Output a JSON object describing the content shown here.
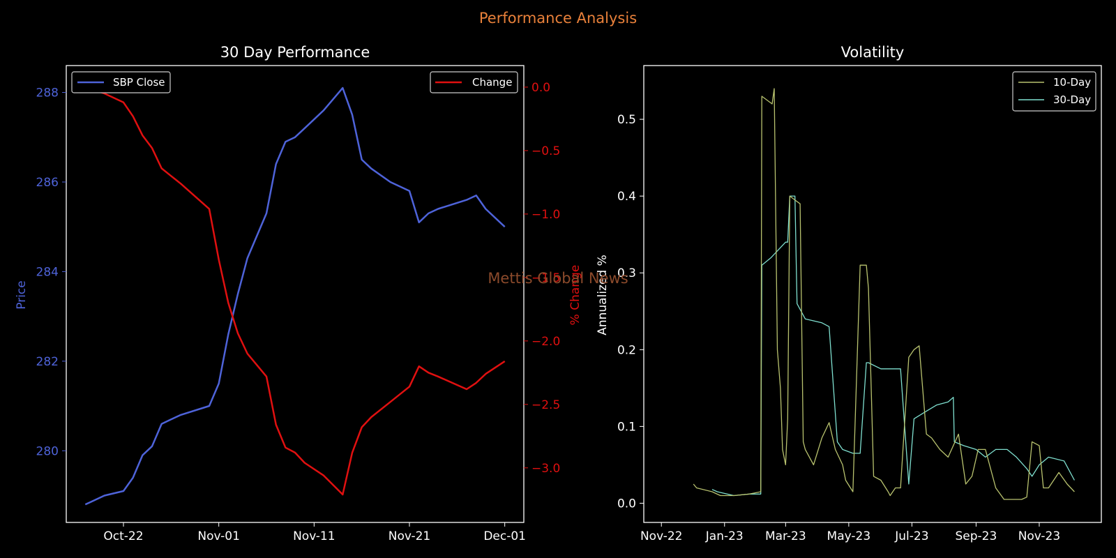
{
  "suptitle": "Performance Analysis",
  "watermark": "Mettis Global News",
  "colors": {
    "background": "#000000",
    "suptitle": "#e8803a",
    "watermark": "#8b4a2b",
    "price": "#4e63d9",
    "change": "#e01010",
    "vol10": "#b9c36f",
    "vol30": "#7fe0d0",
    "axis": "#ffffff"
  },
  "chart_data": [
    {
      "type": "line",
      "title": "30 Day Performance",
      "xlabel": "",
      "ylabel": "Price",
      "ylabel_right": "% Change",
      "xticks": [
        "Oct-22",
        "Nov-01",
        "Nov-11",
        "Nov-21",
        "Dec-01"
      ],
      "yticks_left": [
        "280",
        "282",
        "284",
        "286",
        "288"
      ],
      "yticks_right": [
        "0.0",
        "−0.5",
        "−1.0",
        "−1.5",
        "−2.0",
        "−2.5",
        "−3.0"
      ],
      "xlim": [
        "2023-10-16",
        "2023-12-03"
      ],
      "ylim_left": [
        278.4,
        288.6
      ],
      "ylim_right": [
        -3.43,
        0.17
      ],
      "legend_left": "SBP Close",
      "legend_right": "Change",
      "x": [
        "2023-10-18",
        "2023-10-20",
        "2023-10-22",
        "2023-10-23",
        "2023-10-24",
        "2023-10-25",
        "2023-10-26",
        "2023-10-27",
        "2023-10-28",
        "2023-10-31",
        "2023-11-01",
        "2023-11-02",
        "2023-11-03",
        "2023-11-04",
        "2023-11-06",
        "2023-11-07",
        "2023-11-08",
        "2023-11-09",
        "2023-11-10",
        "2023-11-12",
        "2023-11-14",
        "2023-11-15",
        "2023-11-16",
        "2023-11-17",
        "2023-11-19",
        "2023-11-21",
        "2023-11-22",
        "2023-11-23",
        "2023-11-24",
        "2023-11-27",
        "2023-11-28",
        "2023-11-29",
        "2023-12-01"
      ],
      "price": [
        278.8,
        279.0,
        279.1,
        279.4,
        279.9,
        280.1,
        280.6,
        280.7,
        280.8,
        281.0,
        281.5,
        282.6,
        283.5,
        284.3,
        285.3,
        286.4,
        286.9,
        287.0,
        287.2,
        287.6,
        288.1,
        287.5,
        286.5,
        286.3,
        286.0,
        285.8,
        285.1,
        285.3,
        285.4,
        285.6,
        285.7,
        285.4,
        285.0
      ],
      "change": [
        0.0,
        -0.05,
        -0.12,
        -0.23,
        -0.38,
        -0.48,
        -0.64,
        -0.7,
        -0.76,
        -0.96,
        -1.36,
        -1.7,
        -1.94,
        -2.1,
        -2.28,
        -2.66,
        -2.84,
        -2.88,
        -2.96,
        -3.06,
        -3.21,
        -2.88,
        -2.68,
        -2.6,
        -2.48,
        -2.36,
        -2.2,
        -2.25,
        -2.28,
        -2.38,
        -2.33,
        -2.26,
        -2.16
      ]
    },
    {
      "type": "line",
      "title": "Volatility",
      "xlabel": "",
      "ylabel": "Annualized %",
      "xticks": [
        "Nov-22",
        "Jan-23",
        "Mar-23",
        "May-23",
        "Jul-23",
        "Sep-23",
        "Nov-23"
      ],
      "yticks": [
        "0.0",
        "0.1",
        "0.2",
        "0.3",
        "0.4",
        "0.5"
      ],
      "xlim": [
        "2022-10-15",
        "2023-12-31"
      ],
      "ylim": [
        -0.025,
        0.57
      ],
      "series": [
        {
          "name": "10-Day",
          "x": [
            "2022-12-02",
            "2022-12-05",
            "2022-12-20",
            "2022-12-28",
            "2023-01-10",
            "2023-01-25",
            "2023-02-05",
            "2023-02-06",
            "2023-02-16",
            "2023-02-18",
            "2023-02-21",
            "2023-02-24",
            "2023-02-26",
            "2023-03-01",
            "2023-03-03",
            "2023-03-05",
            "2023-03-15",
            "2023-03-18",
            "2023-03-20",
            "2023-03-28",
            "2023-04-05",
            "2023-04-12",
            "2023-04-18",
            "2023-04-25",
            "2023-04-28",
            "2023-05-05",
            "2023-05-12",
            "2023-05-18",
            "2023-05-20",
            "2023-05-25",
            "2023-06-01",
            "2023-06-08",
            "2023-06-10",
            "2023-06-15",
            "2023-06-20",
            "2023-06-28",
            "2023-07-03",
            "2023-07-08",
            "2023-07-15",
            "2023-07-20",
            "2023-07-28",
            "2023-08-05",
            "2023-08-15",
            "2023-08-22",
            "2023-08-28",
            "2023-09-03",
            "2023-09-10",
            "2023-09-20",
            "2023-09-28",
            "2023-10-05",
            "2023-10-15",
            "2023-10-20",
            "2023-10-25",
            "2023-11-01",
            "2023-11-05",
            "2023-11-10",
            "2023-11-20",
            "2023-11-28",
            "2023-12-05"
          ],
          "values": [
            0.025,
            0.02,
            0.015,
            0.01,
            0.01,
            0.012,
            0.015,
            0.53,
            0.52,
            0.54,
            0.2,
            0.15,
            0.07,
            0.05,
            0.11,
            0.4,
            0.39,
            0.08,
            0.07,
            0.05,
            0.085,
            0.105,
            0.07,
            0.05,
            0.03,
            0.015,
            0.31,
            0.31,
            0.28,
            0.035,
            0.03,
            0.015,
            0.01,
            0.02,
            0.02,
            0.19,
            0.2,
            0.205,
            0.09,
            0.085,
            0.07,
            0.06,
            0.09,
            0.025,
            0.035,
            0.07,
            0.07,
            0.02,
            0.005,
            0.005,
            0.005,
            0.008,
            0.08,
            0.075,
            0.02,
            0.02,
            0.04,
            0.025,
            0.015
          ]
        },
        {
          "name": "30-Day",
          "x": [
            "2022-12-20",
            "2022-12-25",
            "2023-01-10",
            "2023-01-25",
            "2023-02-05",
            "2023-02-06",
            "2023-02-15",
            "2023-02-22",
            "2023-03-01",
            "2023-03-03",
            "2023-03-05",
            "2023-03-10",
            "2023-03-12",
            "2023-03-20",
            "2023-04-05",
            "2023-04-12",
            "2023-04-20",
            "2023-04-25",
            "2023-05-05",
            "2023-05-12",
            "2023-05-18",
            "2023-05-20",
            "2023-06-01",
            "2023-06-10",
            "2023-06-20",
            "2023-06-28",
            "2023-07-03",
            "2023-07-15",
            "2023-07-25",
            "2023-08-05",
            "2023-08-10",
            "2023-08-11",
            "2023-08-20",
            "2023-09-01",
            "2023-09-10",
            "2023-09-20",
            "2023-10-01",
            "2023-10-10",
            "2023-10-20",
            "2023-10-25",
            "2023-11-01",
            "2023-11-10",
            "2023-11-25",
            "2023-12-05"
          ],
          "values": [
            0.018,
            0.015,
            0.01,
            0.012,
            0.012,
            0.31,
            0.32,
            0.33,
            0.34,
            0.34,
            0.4,
            0.4,
            0.26,
            0.24,
            0.235,
            0.23,
            0.08,
            0.07,
            0.065,
            0.065,
            0.183,
            0.183,
            0.175,
            0.175,
            0.175,
            0.025,
            0.11,
            0.12,
            0.128,
            0.132,
            0.138,
            0.08,
            0.075,
            0.07,
            0.06,
            0.07,
            0.07,
            0.06,
            0.045,
            0.035,
            0.05,
            0.06,
            0.055,
            0.03
          ]
        }
      ]
    }
  ]
}
